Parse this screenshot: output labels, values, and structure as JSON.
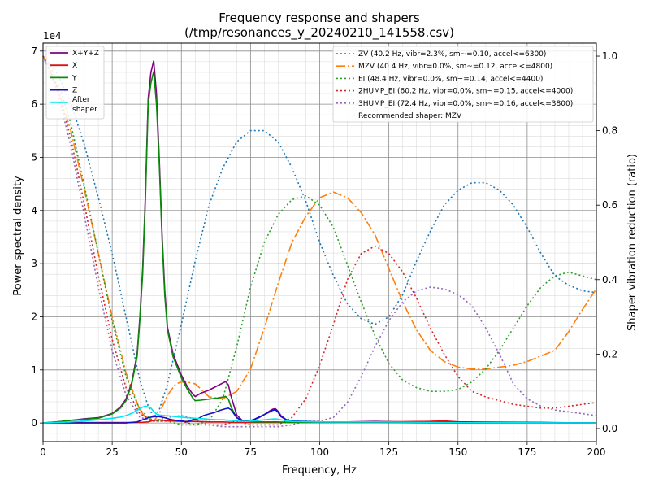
{
  "chart_data": {
    "type": "line",
    "title": "Frequency response and shapers",
    "subtitle": "(/tmp/resonances_y_20240210_141558.csv)",
    "xlabel": "Frequency, Hz",
    "ylabel": "Power spectral density",
    "y2label": "Shaper vibration reduction (ratio)",
    "y_offset_label": "1e4",
    "xlim": [
      0,
      200
    ],
    "ylim": [
      -0.35,
      7.15
    ],
    "y_scale": 10000,
    "y2lim": [
      -0.035,
      1.035
    ],
    "x_ticks": [
      0,
      25,
      50,
      75,
      100,
      125,
      150,
      175,
      200
    ],
    "y_ticks": [
      0,
      1,
      2,
      3,
      4,
      5,
      6,
      7
    ],
    "y2_ticks": [
      0.0,
      0.2,
      0.4,
      0.6,
      0.8,
      1.0
    ],
    "grid": true,
    "legend_left_position": "top-left",
    "legend_right_position": "top-right",
    "psd_series": [
      {
        "name": "X+Y+Z",
        "color": "#800080",
        "width": 1.6,
        "x": [
          0,
          5,
          10,
          15,
          20,
          25,
          28,
          30,
          32,
          34,
          35,
          36,
          37,
          38,
          39,
          40,
          41,
          42,
          43,
          44,
          45,
          47,
          50,
          52,
          54,
          55,
          57,
          60,
          63,
          66,
          67,
          68,
          70,
          72,
          74,
          76,
          78,
          80,
          82,
          83,
          84,
          85,
          86,
          88,
          90,
          95,
          100,
          110,
          120,
          130,
          140,
          145,
          150,
          160,
          170,
          180,
          190,
          200
        ],
        "y": [
          0,
          0.02,
          0.05,
          0.08,
          0.1,
          0.18,
          0.3,
          0.45,
          0.75,
          1.3,
          2.0,
          2.9,
          4.3,
          6.1,
          6.6,
          6.82,
          6.2,
          5.0,
          3.6,
          2.5,
          1.8,
          1.3,
          0.9,
          0.7,
          0.55,
          0.5,
          0.56,
          0.62,
          0.7,
          0.78,
          0.72,
          0.5,
          0.15,
          0.05,
          0.04,
          0.06,
          0.1,
          0.16,
          0.23,
          0.26,
          0.27,
          0.22,
          0.14,
          0.06,
          0.03,
          0.02,
          0.02,
          0.02,
          0.03,
          0.02,
          0.03,
          0.03,
          0.02,
          0.01,
          0.01,
          0.01,
          0.0,
          0.0
        ]
      },
      {
        "name": "X",
        "color": "#e01010",
        "width": 1.6,
        "x": [
          0,
          10,
          20,
          30,
          35,
          38,
          40,
          42,
          45,
          50,
          55,
          60,
          65,
          70,
          75,
          80,
          90,
          100,
          120,
          140,
          145,
          150,
          160,
          200
        ],
        "y": [
          0,
          0.01,
          0.01,
          0.01,
          0.01,
          0.02,
          0.05,
          0.06,
          0.04,
          0.03,
          0.03,
          0.02,
          0.02,
          0.01,
          0.01,
          0.01,
          0.01,
          0.01,
          0.02,
          0.03,
          0.04,
          0.02,
          0.01,
          0.0
        ]
      },
      {
        "name": "Y",
        "color": "#0a8a0a",
        "width": 1.6,
        "x": [
          0,
          5,
          10,
          15,
          20,
          25,
          28,
          30,
          32,
          34,
          35,
          36,
          37,
          38,
          39,
          40,
          41,
          42,
          43,
          44,
          45,
          47,
          50,
          52,
          54,
          55,
          57,
          60,
          63,
          66,
          67,
          68,
          70,
          72,
          74,
          76,
          80,
          85,
          90,
          100,
          120,
          150,
          200
        ],
        "y": [
          0,
          0.02,
          0.05,
          0.07,
          0.09,
          0.17,
          0.28,
          0.42,
          0.72,
          1.25,
          1.95,
          2.8,
          4.2,
          6.0,
          6.4,
          6.62,
          6.0,
          4.9,
          3.5,
          2.4,
          1.75,
          1.25,
          0.85,
          0.65,
          0.48,
          0.42,
          0.43,
          0.45,
          0.47,
          0.5,
          0.45,
          0.3,
          0.1,
          0.04,
          0.03,
          0.02,
          0.02,
          0.02,
          0.01,
          0.01,
          0.01,
          0.0,
          0.0
        ]
      },
      {
        "name": "Z",
        "color": "#1010c8",
        "width": 1.6,
        "x": [
          0,
          10,
          20,
          30,
          34,
          36,
          38,
          40,
          42,
          44,
          46,
          48,
          50,
          52,
          54,
          56,
          58,
          60,
          62,
          64,
          66,
          67,
          68,
          70,
          72,
          74,
          76,
          78,
          80,
          82,
          83,
          84,
          85,
          86,
          88,
          90,
          100,
          120,
          150,
          200
        ],
        "y": [
          0,
          0,
          0,
          0,
          0.02,
          0.06,
          0.1,
          0.12,
          0.12,
          0.1,
          0.07,
          0.05,
          0.04,
          0.02,
          0.06,
          0.08,
          0.14,
          0.17,
          0.2,
          0.24,
          0.27,
          0.28,
          0.25,
          0.1,
          0.04,
          0.03,
          0.06,
          0.11,
          0.16,
          0.21,
          0.24,
          0.25,
          0.2,
          0.12,
          0.06,
          0.04,
          0.02,
          0.02,
          0.02,
          0.0
        ]
      },
      {
        "name": "After shaper",
        "color": "#00e5ee",
        "width": 1.6,
        "x": [
          0,
          5,
          10,
          15,
          20,
          25,
          28,
          30,
          32,
          34,
          36,
          37,
          38,
          39,
          40,
          41,
          42,
          44,
          46,
          48,
          50,
          52,
          55,
          58,
          60,
          63,
          65,
          68,
          70,
          72,
          74,
          76,
          78,
          80,
          82,
          84,
          86,
          88,
          90,
          100,
          120,
          150,
          200
        ],
        "y": [
          0,
          0.01,
          0.02,
          0.04,
          0.06,
          0.09,
          0.11,
          0.14,
          0.18,
          0.24,
          0.3,
          0.32,
          0.3,
          0.28,
          0.22,
          0.17,
          0.15,
          0.14,
          0.13,
          0.12,
          0.11,
          0.1,
          0.09,
          0.08,
          0.07,
          0.06,
          0.06,
          0.05,
          0.04,
          0.03,
          0.03,
          0.04,
          0.05,
          0.06,
          0.07,
          0.08,
          0.06,
          0.04,
          0.03,
          0.02,
          0.02,
          0.01,
          0.0
        ]
      }
    ],
    "shaper_series": [
      {
        "name": "ZV (40.2 Hz, vibr=2.3%, sm~=0.10, accel<=6300)",
        "color": "#1f77b4",
        "dash": "2,3",
        "x": [
          0,
          5,
          10,
          15,
          20,
          25,
          30,
          35,
          38,
          40,
          42,
          45,
          50,
          55,
          60,
          65,
          70,
          75,
          80,
          85,
          90,
          95,
          100,
          105,
          110,
          115,
          120,
          125,
          130,
          135,
          140,
          145,
          150,
          155,
          160,
          165,
          170,
          175,
          180,
          185,
          190,
          195,
          200
        ],
        "y": [
          1.0,
          0.955,
          0.875,
          0.76,
          0.62,
          0.47,
          0.3,
          0.13,
          0.06,
          0.03,
          0.05,
          0.12,
          0.28,
          0.45,
          0.6,
          0.7,
          0.77,
          0.8,
          0.8,
          0.77,
          0.7,
          0.61,
          0.5,
          0.41,
          0.335,
          0.295,
          0.28,
          0.3,
          0.36,
          0.45,
          0.53,
          0.6,
          0.64,
          0.66,
          0.66,
          0.64,
          0.6,
          0.54,
          0.47,
          0.41,
          0.385,
          0.37,
          0.365
        ]
      },
      {
        "name": "MZV (40.4 Hz, vibr=0.0%, sm~=0.12, accel<=4800)",
        "color": "#ff7f0e",
        "dash": "11,3,2,3",
        "x": [
          0,
          5,
          10,
          15,
          20,
          25,
          30,
          35,
          38,
          40,
          42,
          45,
          48,
          50,
          52,
          55,
          58,
          60,
          65,
          70,
          75,
          80,
          85,
          90,
          95,
          100,
          105,
          110,
          115,
          120,
          125,
          130,
          135,
          140,
          145,
          150,
          155,
          160,
          165,
          170,
          175,
          180,
          185,
          190,
          195,
          200
        ],
        "y": [
          1.0,
          0.92,
          0.8,
          0.64,
          0.47,
          0.3,
          0.15,
          0.05,
          0.02,
          0.02,
          0.04,
          0.09,
          0.12,
          0.125,
          0.125,
          0.12,
          0.1,
          0.085,
          0.08,
          0.1,
          0.16,
          0.27,
          0.39,
          0.5,
          0.57,
          0.62,
          0.635,
          0.62,
          0.58,
          0.52,
          0.43,
          0.34,
          0.265,
          0.21,
          0.18,
          0.165,
          0.16,
          0.16,
          0.165,
          0.17,
          0.18,
          0.195,
          0.21,
          0.26,
          0.32,
          0.375
        ]
      },
      {
        "name": "EI (48.4 Hz, vibr=0.0%, sm~=0.14, accel<=4400)",
        "color": "#2ca02c",
        "dash": "2,3",
        "x": [
          0,
          5,
          10,
          15,
          20,
          25,
          30,
          35,
          40,
          45,
          50,
          55,
          60,
          65,
          70,
          75,
          80,
          85,
          90,
          95,
          100,
          105,
          110,
          115,
          120,
          125,
          130,
          135,
          140,
          145,
          150,
          155,
          160,
          165,
          170,
          175,
          180,
          185,
          190,
          195,
          200
        ],
        "y": [
          1.0,
          0.94,
          0.82,
          0.65,
          0.47,
          0.29,
          0.14,
          0.05,
          0.02,
          0.02,
          0.01,
          0.01,
          0.02,
          0.08,
          0.22,
          0.38,
          0.5,
          0.575,
          0.615,
          0.625,
          0.6,
          0.54,
          0.44,
          0.34,
          0.25,
          0.175,
          0.13,
          0.11,
          0.1,
          0.1,
          0.105,
          0.125,
          0.16,
          0.21,
          0.27,
          0.33,
          0.38,
          0.41,
          0.42,
          0.41,
          0.4
        ]
      },
      {
        "name": "2HUMP_EI (60.2 Hz, vibr=0.0%, sm~=0.15, accel<=4000)",
        "color": "#d62728",
        "dash": "2,3",
        "x": [
          0,
          5,
          10,
          15,
          20,
          25,
          30,
          35,
          40,
          45,
          50,
          55,
          60,
          65,
          70,
          75,
          80,
          85,
          90,
          95,
          100,
          105,
          110,
          115,
          120,
          125,
          130,
          135,
          140,
          145,
          150,
          155,
          160,
          165,
          170,
          175,
          180,
          185,
          190,
          195,
          200
        ],
        "y": [
          1.0,
          0.92,
          0.78,
          0.6,
          0.41,
          0.24,
          0.11,
          0.04,
          0.02,
          0.02,
          0.02,
          0.01,
          0.01,
          0.01,
          0.02,
          0.01,
          0.01,
          0.01,
          0.03,
          0.08,
          0.17,
          0.28,
          0.4,
          0.47,
          0.49,
          0.47,
          0.42,
          0.35,
          0.27,
          0.2,
          0.14,
          0.1,
          0.085,
          0.075,
          0.065,
          0.06,
          0.055,
          0.055,
          0.06,
          0.065,
          0.07
        ]
      },
      {
        "name": "3HUMP_EI (72.4 Hz, vibr=0.0%, sm~=0.16, accel<=3800)",
        "color": "#9467bd",
        "dash": "2,3",
        "x": [
          0,
          5,
          10,
          15,
          20,
          25,
          30,
          35,
          40,
          45,
          50,
          55,
          60,
          65,
          70,
          75,
          80,
          85,
          90,
          95,
          100,
          105,
          110,
          115,
          120,
          125,
          130,
          135,
          140,
          145,
          150,
          155,
          160,
          165,
          170,
          175,
          180,
          185,
          190,
          195,
          200
        ],
        "y": [
          1.0,
          0.91,
          0.76,
          0.57,
          0.38,
          0.21,
          0.09,
          0.03,
          0.02,
          0.03,
          0.035,
          0.025,
          0.01,
          0.005,
          0.005,
          0.005,
          0.005,
          0.005,
          0.01,
          0.02,
          0.02,
          0.03,
          0.07,
          0.14,
          0.22,
          0.29,
          0.34,
          0.37,
          0.38,
          0.375,
          0.36,
          0.33,
          0.27,
          0.2,
          0.12,
          0.08,
          0.06,
          0.05,
          0.045,
          0.04,
          0.035
        ]
      }
    ],
    "recommended_text": "Recommended shaper: MZV"
  }
}
